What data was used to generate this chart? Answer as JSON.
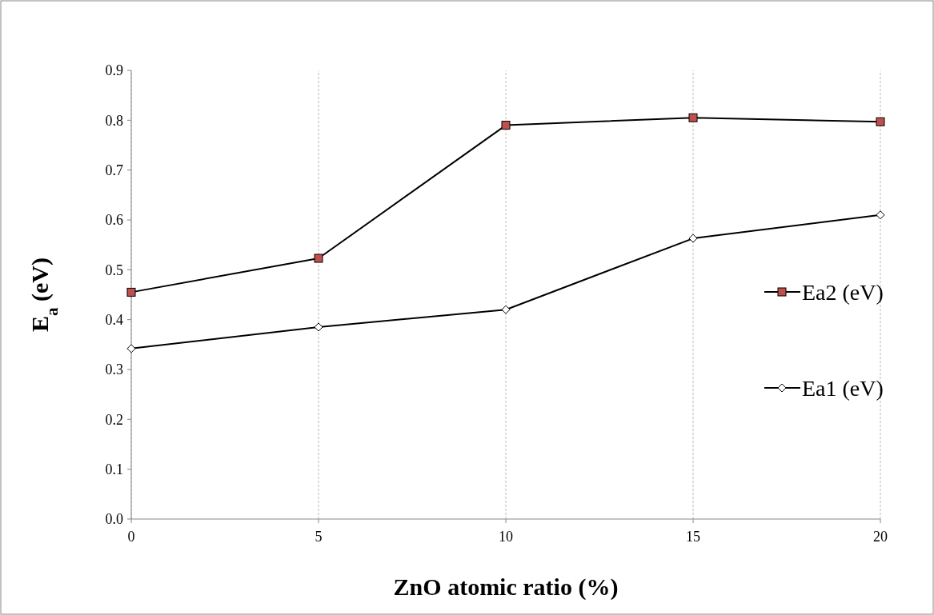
{
  "chart_data": {
    "type": "line",
    "xlabel": "ZnO atomic ratio (%)",
    "ylabel": "E$_{a}$ (eV)",
    "x": [
      0,
      5,
      10,
      15,
      20
    ],
    "xlim": [
      0,
      20
    ],
    "xticks": [
      0,
      5,
      10,
      15,
      20
    ],
    "ylim": [
      0,
      0.9
    ],
    "yticks": [
      {
        "value": 0,
        "label": "0.0"
      },
      0.1,
      0.2,
      0.3,
      0.4,
      0.5,
      0.6,
      0.7,
      0.8,
      0.9
    ],
    "grid": "x",
    "legend": "right",
    "series": [
      {
        "name": "Ea2 (eV)",
        "color": "#c0504d",
        "marker": "square",
        "values": [
          0.455,
          0.523,
          0.79,
          0.805,
          0.797
        ]
      },
      {
        "name": "Ea1 (eV)",
        "color": "#ffffff",
        "marker": "diamond",
        "values": [
          0.342,
          0.385,
          0.42,
          0.563,
          0.61
        ]
      }
    ]
  }
}
